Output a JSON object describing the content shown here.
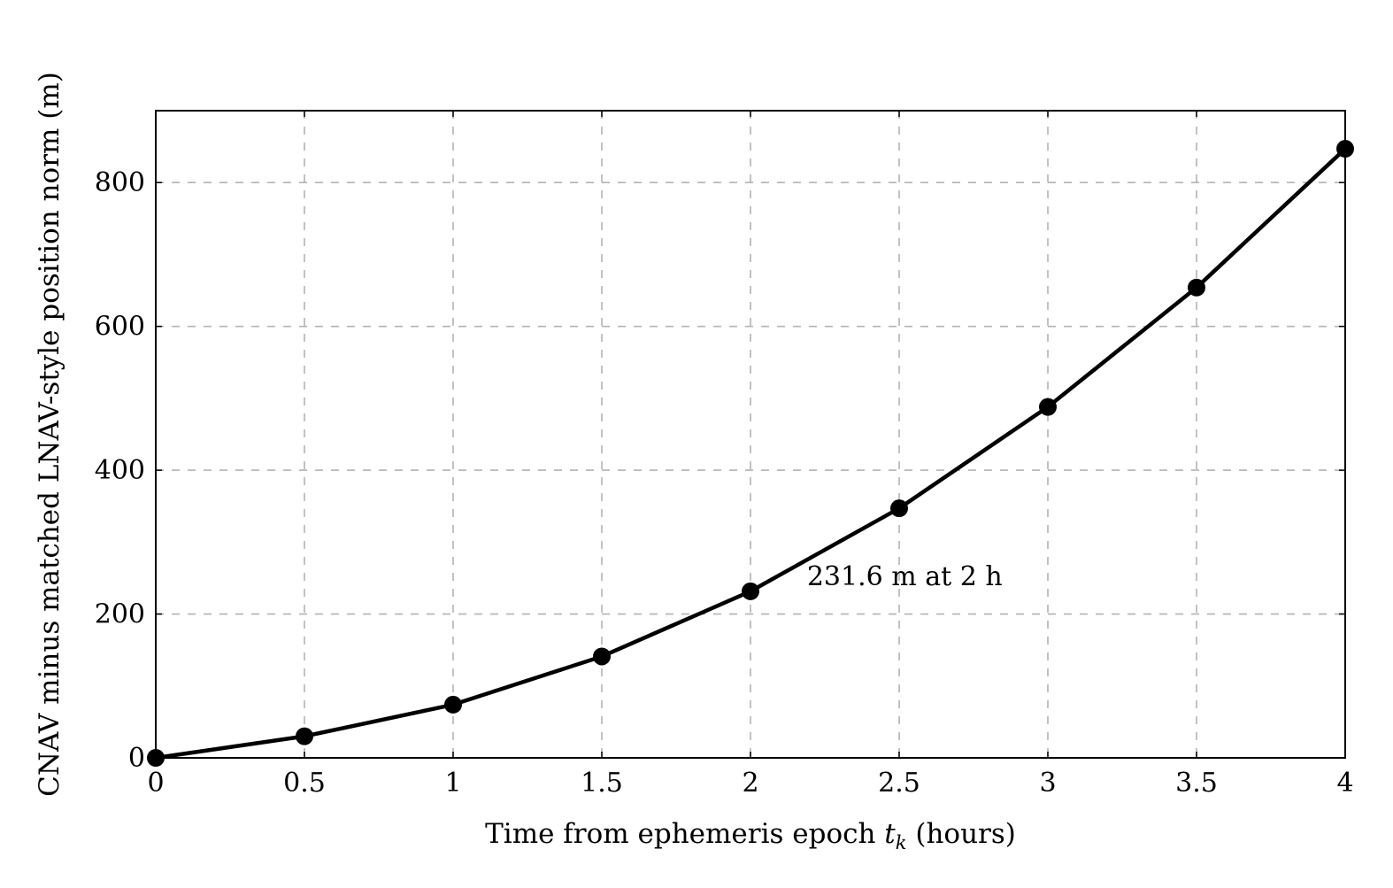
{
  "chart_data": {
    "type": "line",
    "title": "",
    "xlabel_main": "Time from ephemeris epoch ",
    "xlabel_var": "t",
    "xlabel_sub": "k",
    "xlabel_unit": " (hours)",
    "ylabel": "CNAV minus matched LNAV-style position norm (m)",
    "xlim": [
      0,
      4
    ],
    "ylim": [
      0,
      900
    ],
    "xticks": [
      0,
      0.5,
      1,
      1.5,
      2,
      2.5,
      3,
      3.5,
      4
    ],
    "xtick_labels": [
      "0",
      "0.5",
      "1",
      "1.5",
      "2",
      "2.5",
      "3",
      "3.5",
      "4"
    ],
    "yticks": [
      0,
      200,
      400,
      600,
      800
    ],
    "ytick_labels": [
      "0",
      "200",
      "400",
      "600",
      "800"
    ],
    "grid": true,
    "grid_style": "dashed",
    "series": [
      {
        "x": [
          0,
          0.5,
          1,
          1.5,
          2,
          2.5,
          3,
          3.5,
          4
        ],
        "y": [
          0,
          30,
          74,
          141,
          231.6,
          347,
          488,
          654,
          847
        ],
        "color": "#000000",
        "marker": "circle"
      }
    ],
    "annotations": [
      {
        "text": "231.6 m at 2 h",
        "x": 2.19,
        "y": 240
      }
    ]
  }
}
